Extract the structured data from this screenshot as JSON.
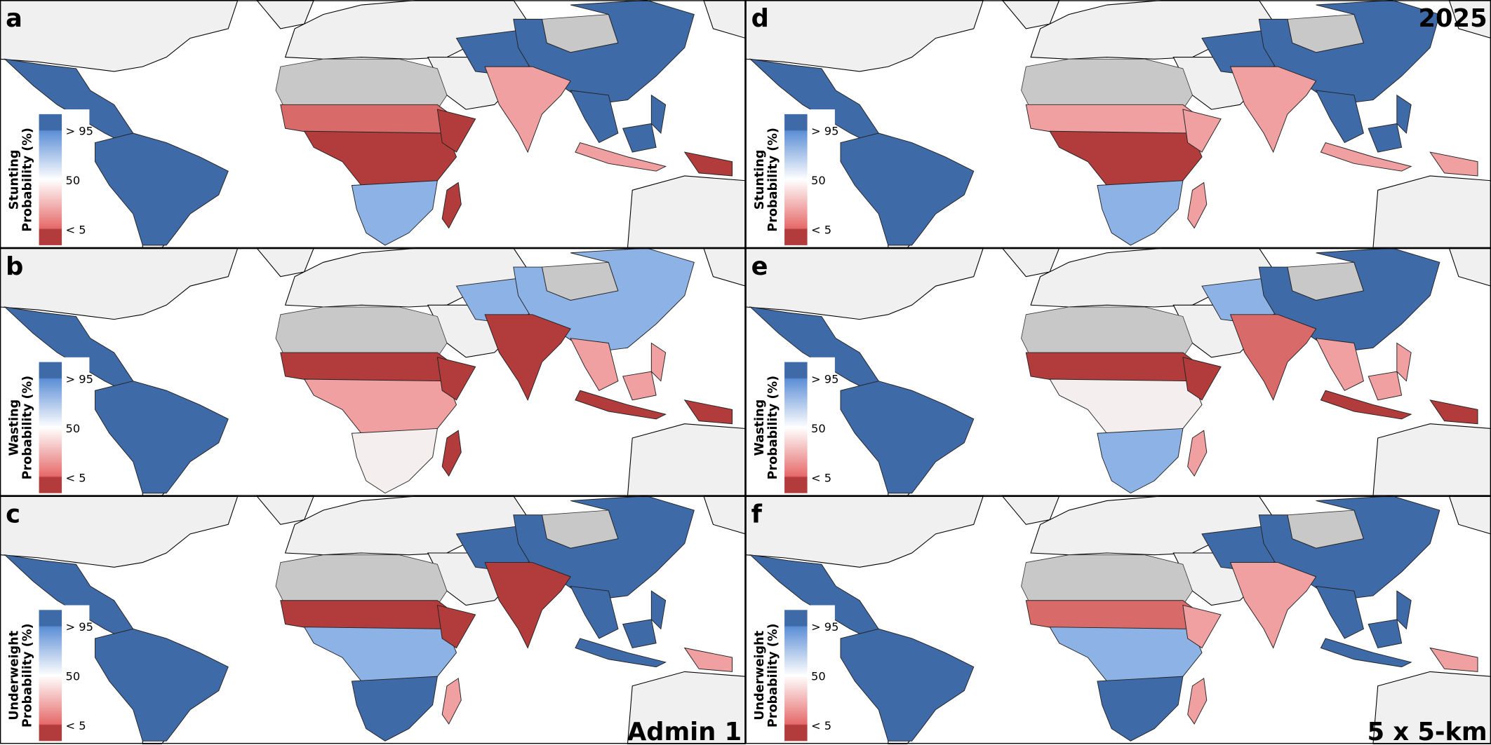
{
  "panels": [
    {
      "label": "a",
      "legend_title": [
        "Stunting",
        "Probability (%)"
      ],
      "legend_ticks": [
        "> 95",
        "50",
        "< 5"
      ]
    },
    {
      "label": "b",
      "legend_title": [
        "Wasting",
        "Probability (%)"
      ],
      "legend_ticks": [
        "> 95",
        "50",
        "< 5"
      ]
    },
    {
      "label": "c",
      "legend_title": [
        "Underweight",
        "Probability (%)"
      ],
      "legend_ticks": [
        "> 95",
        "50",
        "< 5"
      ],
      "corner": "Admin 1"
    },
    {
      "label": "d",
      "legend_title": [
        "Stunting",
        "Probability (%)"
      ],
      "legend_ticks": [
        "> 95",
        "50",
        "< 5"
      ],
      "corner_top": "2025"
    },
    {
      "label": "e",
      "legend_title": [
        "Wasting",
        "Probability (%)"
      ],
      "legend_ticks": [
        "> 95",
        "50",
        "< 5"
      ]
    },
    {
      "label": "f",
      "legend_title": [
        "Underweight",
        "Probability (%)"
      ],
      "legend_ticks": [
        "> 95",
        "50",
        "< 5"
      ],
      "corner": "5 x 5-km"
    }
  ]
}
